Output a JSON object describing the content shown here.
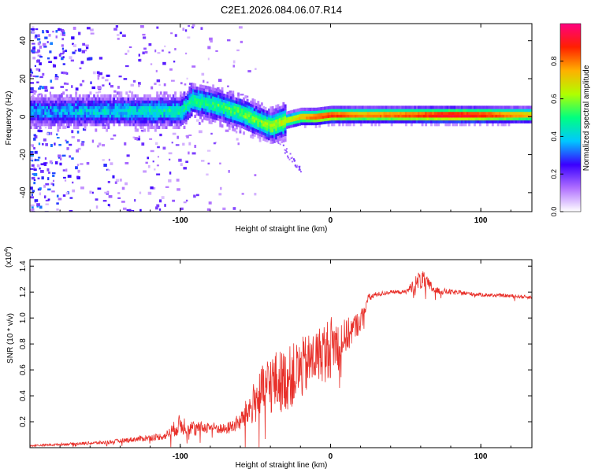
{
  "page_title": "C2E1.2026.084.06.07.R14",
  "chart_data": [
    {
      "type": "heatmap",
      "title": "C2E1.2026.084.06.07.R14",
      "xlabel": "Height of straight line (km)",
      "ylabel": "Frequency (Hz)",
      "xlim": [
        -200,
        134
      ],
      "ylim": [
        -50,
        49
      ],
      "x_ticks": [
        -100,
        0,
        100
      ],
      "x_tick_labels": [
        "-100",
        "0",
        "100"
      ],
      "y_ticks": [
        -40,
        -20,
        0,
        20,
        40
      ],
      "y_tick_labels": [
        "-40",
        "-20",
        "0",
        "20",
        "40"
      ],
      "colorbar": {
        "label": "Normalized spectral amplitude",
        "range": [
          0,
          1
        ],
        "ticks": [
          0.0,
          0.2,
          0.4,
          0.6,
          0.8
        ],
        "tick_labels": [
          "0.0",
          "0.2",
          "0.4",
          "0.6",
          "0.8"
        ],
        "colors": [
          "#ffffff",
          "#b070ff",
          "#3a00ff",
          "#00c8ff",
          "#00ff80",
          "#b0ff00",
          "#ffb000",
          "#ff2000",
          "#ff0080"
        ]
      },
      "ridge": {
        "x": [
          -200,
          -150,
          -100,
          -92,
          -80,
          -60,
          -40,
          -30,
          -20,
          -10,
          0,
          20,
          50,
          80,
          100,
          120,
          134
        ],
        "frequency": [
          3,
          3,
          3,
          9,
          7,
          2,
          -5,
          -2,
          0,
          0,
          1,
          1,
          1,
          1,
          1,
          1,
          1
        ],
        "amplitude": [
          0.35,
          0.4,
          0.45,
          0.5,
          0.5,
          0.55,
          0.6,
          0.65,
          0.75,
          0.85,
          0.9,
          0.8,
          0.85,
          0.95,
          0.9,
          0.8,
          0.75
        ]
      }
    },
    {
      "type": "line",
      "xlabel": "Height of straight line (km)",
      "ylabel": "SNR (10 * v/v)",
      "y_scale_label": "(x10",
      "y_scale_exponent": "4",
      "y_scale_close": ")",
      "xlim": [
        -200,
        134
      ],
      "ylim": [
        0,
        14500
      ],
      "x_ticks": [
        -100,
        0,
        100
      ],
      "x_tick_labels": [
        "-100",
        "0",
        "100"
      ],
      "y_ticks": [
        2000,
        4000,
        6000,
        8000,
        10000,
        12000,
        14000
      ],
      "y_tick_labels": [
        "0.2",
        "0.4",
        "0.6",
        "0.8",
        "1.0",
        "1.2",
        "1.4"
      ],
      "color": "#e8302a",
      "series": [
        {
          "name": "SNR",
          "x": [
            -200,
            -150,
            -110,
            -100,
            -90,
            -80,
            -70,
            -60,
            -50,
            -40,
            -30,
            -20,
            -10,
            0,
            10,
            20,
            25,
            30,
            40,
            50,
            60,
            70,
            80,
            100,
            120,
            134
          ],
          "y": [
            150,
            400,
            900,
            1800,
            1500,
            1600,
            1400,
            2000,
            3600,
            5000,
            5200,
            6000,
            7000,
            7800,
            8500,
            9800,
            11500,
            11800,
            12000,
            12000,
            13000,
            12100,
            12000,
            11800,
            11700,
            11600
          ],
          "noise": [
            100,
            200,
            400,
            1200,
            700,
            600,
            600,
            1000,
            2500,
            3500,
            3500,
            3500,
            3000,
            3500,
            2000,
            1200,
            500,
            300,
            200,
            200,
            1200,
            400,
            300,
            200,
            200,
            200
          ]
        }
      ]
    }
  ]
}
